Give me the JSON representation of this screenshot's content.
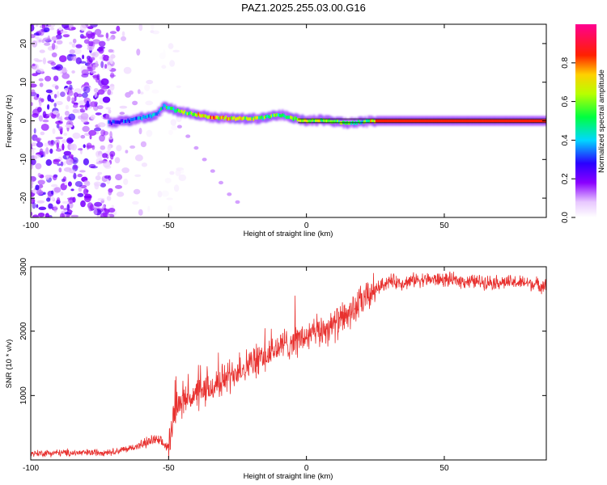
{
  "chart_data": [
    {
      "type": "heatmap",
      "title": "PAZ1.2025.255.03.00.G16",
      "xlabel": "Height of straight line (km)",
      "ylabel": "Frequency (Hz)",
      "xlim": [
        -100,
        87
      ],
      "ylim": [
        -25,
        25
      ],
      "x_ticks": [
        -100,
        -50,
        0,
        50
      ],
      "y_ticks": [
        -20,
        -10,
        0,
        10,
        20
      ],
      "grid": false,
      "colorbar": {
        "label": "Normalized spectral amplitude",
        "range": [
          0,
          1
        ],
        "ticks": [
          "0.0",
          "0.2",
          "0.4",
          "0.6",
          "0.8"
        ]
      },
      "ridge": {
        "description_points_height_km": [
          -72,
          -65,
          -60,
          -55,
          -52,
          -48,
          -45,
          -40,
          -35,
          -30,
          -25,
          -20,
          -15,
          -10,
          -5,
          0,
          5,
          10,
          15,
          20,
          25,
          40,
          60,
          87
        ],
        "frequency_hz": [
          -0.5,
          0.0,
          0.8,
          1.5,
          3.8,
          2.8,
          2.2,
          1.6,
          1.0,
          0.7,
          0.6,
          0.5,
          0.9,
          1.6,
          0.6,
          0.0,
          0.2,
          -0.2,
          -0.6,
          -0.3,
          0.0,
          0.0,
          0.0,
          0.0
        ],
        "amplitude": [
          0.3,
          0.35,
          0.4,
          0.45,
          0.5,
          0.55,
          0.6,
          0.7,
          0.8,
          0.75,
          0.7,
          0.65,
          0.6,
          0.55,
          0.6,
          0.7,
          0.65,
          0.6,
          0.55,
          0.5,
          0.85,
          0.85,
          0.85,
          0.85
        ]
      },
      "diagonal_branch": {
        "height_km": [
          -46,
          -43,
          -40,
          -37,
          -34,
          -31,
          -28,
          -25
        ],
        "frequency_hz": [
          -1.5,
          -4.0,
          -7.0,
          -10.0,
          -13.0,
          -16.0,
          -19.0,
          -21.0
        ]
      },
      "noise_region_height_km": [
        -100,
        -70
      ],
      "annotation_residual_line_km": [
        -3,
        87
      ]
    },
    {
      "type": "line",
      "xlabel": "Height of straight line (km)",
      "ylabel": "SNR (10 * v/v)",
      "xlim": [
        -100,
        87
      ],
      "ylim": [
        0,
        3000
      ],
      "x_ticks": [
        -100,
        -50,
        0,
        50
      ],
      "y_ticks": [
        1000,
        2000,
        3000
      ],
      "grid": false,
      "color": "#e8312f",
      "series": [
        {
          "name": "SNR",
          "x": [
            -100,
            -90,
            -80,
            -70,
            -65,
            -60,
            -55,
            -50,
            -48,
            -45,
            -40,
            -35,
            -30,
            -25,
            -20,
            -15,
            -10,
            -5,
            0,
            5,
            10,
            15,
            20,
            25,
            30,
            35,
            40,
            50,
            60,
            70,
            80,
            87
          ],
          "y": [
            100,
            110,
            110,
            130,
            170,
            230,
            320,
            200,
            750,
            950,
            1000,
            1100,
            1250,
            1400,
            1500,
            1600,
            1750,
            1850,
            1900,
            2000,
            2100,
            2250,
            2450,
            2650,
            2780,
            2750,
            2800,
            2800,
            2770,
            2760,
            2750,
            2700
          ]
        }
      ]
    }
  ]
}
